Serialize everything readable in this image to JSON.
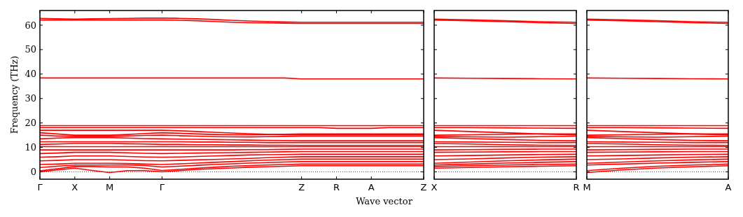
{
  "chart_data": [
    {
      "type": "line",
      "ylabel": "Frequency (THz)",
      "xlabel": "Wave vector",
      "categories": [
        "Γ",
        null,
        "X",
        null,
        "M",
        null,
        null,
        "Γ",
        null,
        null,
        null,
        null,
        null,
        null,
        null,
        "Z",
        null,
        "R",
        null,
        "A",
        null,
        null,
        "Z"
      ],
      "ylim": [
        -3,
        66
      ],
      "yticks": [
        0,
        10,
        20,
        30,
        40,
        50,
        60
      ],
      "grid": false,
      "line_style": "solid",
      "marker": "none",
      "ref_lines": [
        {
          "axis": "y",
          "value": 0,
          "color": "#0000ff",
          "line_style": "dotted"
        }
      ],
      "series": [
        {
          "color": "#ff0000",
          "values": [
            0,
            0.8,
            1.5,
            0.6,
            -0.3,
            0.5,
            0.5,
            0,
            0.5,
            1,
            1.3,
            1.6,
            1.9,
            2.1,
            2.3,
            2.5,
            2.5,
            2.5,
            2.5,
            2.5,
            2.5,
            2.5,
            2.5
          ]
        },
        {
          "color": "#ff0000",
          "values": [
            0.4,
            1.3,
            2.2,
            2.2,
            2,
            2,
            1.5,
            0.6,
            1,
            1.5,
            1.9,
            2.3,
            2.6,
            2.8,
            3,
            3.2,
            3.2,
            3.2,
            3.2,
            3.2,
            3.2,
            3.2,
            3.2
          ]
        },
        {
          "color": "#ff0000",
          "values": [
            1.8,
            2.3,
            2.8,
            2.8,
            2.8,
            2.8,
            2.6,
            2,
            2.3,
            2.7,
            3,
            3.3,
            3.6,
            3.8,
            4,
            4.2,
            4.2,
            4.2,
            4.2,
            4.2,
            4.2,
            4.2,
            4.2
          ]
        },
        {
          "color": "#ff0000",
          "values": [
            3,
            3.2,
            3.5,
            3.5,
            3.5,
            3.4,
            3.2,
            3,
            3.3,
            3.6,
            3.9,
            4.2,
            4.5,
            4.8,
            5,
            5.2,
            5.2,
            5.2,
            5.2,
            5.2,
            5.2,
            5.2,
            5.2
          ]
        },
        {
          "color": "#ff0000",
          "values": [
            4.5,
            4.7,
            5,
            5,
            5,
            4.8,
            4.6,
            4.5,
            4.7,
            4.9,
            5.1,
            5.3,
            5.5,
            5.8,
            6,
            6.2,
            6.2,
            6.2,
            6.2,
            6.2,
            6.2,
            6.2,
            6.2
          ]
        },
        {
          "color": "#ff0000",
          "values": [
            6,
            6.2,
            6.5,
            6.5,
            6.5,
            6.3,
            6.1,
            6,
            6.1,
            6.3,
            6.5,
            6.7,
            6.9,
            7,
            7.1,
            7.2,
            7.2,
            7.2,
            7.2,
            7.2,
            7.2,
            7.2,
            7.2
          ]
        },
        {
          "color": "#ff0000",
          "values": [
            7.5,
            7.7,
            8,
            8,
            8,
            7.8,
            7.6,
            7.5,
            7.6,
            7.7,
            7.8,
            7.9,
            8,
            8.1,
            8.2,
            8.3,
            8.3,
            8.3,
            8.3,
            8.3,
            8.3,
            8.3,
            8.3
          ]
        },
        {
          "color": "#ff0000",
          "values": [
            9,
            9,
            9,
            9,
            9,
            9,
            9,
            9,
            9,
            9,
            9,
            9,
            9.1,
            9.1,
            9.2,
            9.3,
            9.3,
            9.3,
            9.3,
            9.3,
            9.3,
            9.3,
            9.3
          ]
        },
        {
          "color": "#ff0000",
          "values": [
            10.3,
            10.3,
            10.3,
            10.3,
            10.3,
            10.3,
            10.3,
            10.3,
            10.3,
            10.3,
            10.3,
            10.3,
            10.3,
            10.3,
            10.3,
            10.3,
            10.3,
            10.3,
            10.3,
            10.3,
            10.3,
            10.3,
            10.3
          ]
        },
        {
          "color": "#ff0000",
          "values": [
            11.2,
            11.4,
            11.6,
            11.6,
            11.6,
            11.5,
            11.4,
            11.2,
            11.2,
            11.1,
            11.1,
            11,
            11,
            10.9,
            10.9,
            10.8,
            10.8,
            10.8,
            10.8,
            10.8,
            10.8,
            10.8,
            10.8
          ]
        },
        {
          "color": "#ff0000",
          "values": [
            12.3,
            12.3,
            12.3,
            12.3,
            12.3,
            12.3,
            12.3,
            12.3,
            12.3,
            12.2,
            12.2,
            12.1,
            12.1,
            12,
            12,
            12,
            12,
            12,
            12,
            12,
            12,
            12,
            12
          ]
        },
        {
          "color": "#ff0000",
          "values": [
            13.5,
            13.8,
            14,
            14,
            14,
            13.8,
            13.6,
            13.5,
            13.4,
            13.3,
            13.2,
            13.1,
            13,
            12.9,
            12.8,
            12.7,
            12.7,
            12.7,
            12.7,
            12.7,
            12.7,
            12.7,
            12.7
          ]
        },
        {
          "color": "#ff0000",
          "values": [
            15,
            14.7,
            14.5,
            14.5,
            14.5,
            14.7,
            14.9,
            15,
            14.8,
            14.6,
            14.4,
            14.3,
            14.3,
            14.4,
            14.5,
            14.6,
            14.6,
            14.6,
            14.6,
            14.6,
            14.6,
            14.6,
            14.6
          ]
        },
        {
          "color": "#ff0000",
          "values": [
            16,
            15.5,
            15,
            15,
            15,
            15.3,
            15.7,
            16,
            15.8,
            15.5,
            15.3,
            15.2,
            15.2,
            15.3,
            15.4,
            15.5,
            15.5,
            15.5,
            15.5,
            15.5,
            15.5,
            15.5,
            15.5
          ]
        },
        {
          "color": "#ff0000",
          "values": [
            17,
            17,
            17,
            17,
            17,
            17,
            17,
            17,
            16.8,
            16.5,
            16.2,
            15.9,
            15.6,
            15.4,
            15.2,
            15.1,
            15.1,
            15.1,
            15.1,
            15.1,
            15.1,
            15.1,
            15.1
          ]
        },
        {
          "color": "#ff0000",
          "values": [
            18.1,
            18.1,
            18.1,
            18.1,
            18.1,
            18.1,
            18.1,
            18.1,
            18.1,
            18.1,
            18.1,
            18.1,
            18.1,
            18.1,
            18.1,
            18.1,
            18.1,
            17.8,
            17.8,
            17.8,
            18.1,
            18.1,
            18.1
          ]
        },
        {
          "color": "#ff0000",
          "values": [
            18.9,
            18.9,
            18.9,
            18.9,
            18.9,
            18.9,
            18.9,
            18.9,
            18.9,
            18.9,
            18.9,
            18.9,
            18.9,
            18.9,
            18.9,
            18.9,
            18.9,
            18.9,
            18.9,
            18.9,
            18.9,
            18.9,
            18.9
          ]
        },
        {
          "color": "#ff0000",
          "values": [
            38.4,
            38.4,
            38.4,
            38.4,
            38.4,
            38.4,
            38.4,
            38.4,
            38.4,
            38.4,
            38.4,
            38.4,
            38.4,
            38.4,
            38.4,
            38,
            38,
            38,
            38,
            38,
            38,
            38,
            38
          ]
        },
        {
          "color": "#ff0000",
          "values": [
            62.8,
            62.6,
            62.5,
            62.6,
            62.7,
            62.8,
            62.9,
            62.9,
            62.8,
            62.6,
            62.3,
            62,
            61.7,
            61.5,
            61.3,
            61.2,
            61.2,
            61.2,
            61.2,
            61.2,
            61.2,
            61.2,
            61.2
          ]
        },
        {
          "color": "#ff0000",
          "values": [
            62.1,
            62.1,
            62.1,
            62.1,
            62.1,
            62.1,
            62.1,
            62.1,
            62,
            61.8,
            61.5,
            61.2,
            61,
            60.9,
            60.8,
            60.7,
            60.7,
            60.7,
            60.7,
            60.7,
            60.7,
            60.7,
            60.7
          ]
        }
      ]
    },
    {
      "type": "line",
      "categories": [
        "X",
        null,
        null,
        null,
        "R"
      ],
      "ylim": [
        -3,
        66
      ],
      "yticks": [
        0,
        10,
        20,
        30,
        40,
        50,
        60
      ],
      "tick_labels": "x",
      "grid": false,
      "line_style": "solid",
      "marker": "none",
      "ref_lines": [
        {
          "axis": "y",
          "value": 0,
          "color": "#0000ff",
          "line_style": "dotted"
        }
      ],
      "series": [
        {
          "color": "#ff0000",
          "values": [
            1.5,
            1.8,
            2.1,
            2.3,
            2.5
          ]
        },
        {
          "color": "#ff0000",
          "values": [
            2.2,
            2.5,
            2.8,
            3,
            3.2
          ]
        },
        {
          "color": "#ff0000",
          "values": [
            2.8,
            3.2,
            3.6,
            3.9,
            4.2
          ]
        },
        {
          "color": "#ff0000",
          "values": [
            3.5,
            4,
            4.5,
            4.9,
            5.2
          ]
        },
        {
          "color": "#ff0000",
          "values": [
            5,
            5.3,
            5.7,
            6,
            6.2
          ]
        },
        {
          "color": "#ff0000",
          "values": [
            6.5,
            6.7,
            6.9,
            7.1,
            7.2
          ]
        },
        {
          "color": "#ff0000",
          "values": [
            8,
            8.1,
            8.2,
            8.3,
            8.3
          ]
        },
        {
          "color": "#ff0000",
          "values": [
            9,
            9.1,
            9.2,
            9.3,
            9.3
          ]
        },
        {
          "color": "#ff0000",
          "values": [
            10.3,
            10.3,
            10.3,
            10.3,
            10.3
          ]
        },
        {
          "color": "#ff0000",
          "values": [
            11.6,
            11.4,
            11.1,
            10.9,
            10.8
          ]
        },
        {
          "color": "#ff0000",
          "values": [
            12.3,
            12.2,
            12.1,
            12,
            12
          ]
        },
        {
          "color": "#ff0000",
          "values": [
            14,
            13.6,
            13.2,
            12.9,
            12.7
          ]
        },
        {
          "color": "#ff0000",
          "values": [
            14.5,
            14.3,
            14.2,
            14.4,
            14.6
          ]
        },
        {
          "color": "#ff0000",
          "values": [
            15,
            15.2,
            15.4,
            15.5,
            15.5
          ]
        },
        {
          "color": "#ff0000",
          "values": [
            17,
            16.5,
            16,
            15.5,
            15.1
          ]
        },
        {
          "color": "#ff0000",
          "values": [
            18.1,
            18.1,
            18,
            17.9,
            17.8
          ]
        },
        {
          "color": "#ff0000",
          "values": [
            18.9,
            18.9,
            18.9,
            18.9,
            18.9
          ]
        },
        {
          "color": "#ff0000",
          "values": [
            38.4,
            38.3,
            38.2,
            38.1,
            38
          ]
        },
        {
          "color": "#ff0000",
          "values": [
            62.5,
            62.2,
            61.8,
            61.4,
            61.2
          ]
        },
        {
          "color": "#ff0000",
          "values": [
            62.1,
            61.8,
            61.4,
            61,
            60.7
          ]
        }
      ]
    },
    {
      "type": "line",
      "categories": [
        "M",
        null,
        null,
        null,
        "A"
      ],
      "ylim": [
        -3,
        66
      ],
      "yticks": [
        0,
        10,
        20,
        30,
        40,
        50,
        60
      ],
      "tick_labels": "x",
      "grid": false,
      "line_style": "solid",
      "marker": "none",
      "ref_lines": [
        {
          "axis": "y",
          "value": 0,
          "color": "#0000ff",
          "line_style": "dotted"
        }
      ],
      "series": [
        {
          "color": "#ff0000",
          "values": [
            -0.3,
            0.8,
            1.6,
            2.1,
            2.5
          ]
        },
        {
          "color": "#ff0000",
          "values": [
            0.5,
            1.5,
            2.3,
            2.8,
            3.2
          ]
        },
        {
          "color": "#ff0000",
          "values": [
            2.8,
            3.2,
            3.6,
            3.9,
            4.2
          ]
        },
        {
          "color": "#ff0000",
          "values": [
            3.5,
            4,
            4.5,
            4.9,
            5.2
          ]
        },
        {
          "color": "#ff0000",
          "values": [
            5,
            5.3,
            5.7,
            6,
            6.2
          ]
        },
        {
          "color": "#ff0000",
          "values": [
            6.5,
            6.7,
            6.9,
            7.1,
            7.2
          ]
        },
        {
          "color": "#ff0000",
          "values": [
            8,
            8.1,
            8.2,
            8.3,
            8.3
          ]
        },
        {
          "color": "#ff0000",
          "values": [
            9,
            9.1,
            9.2,
            9.3,
            9.3
          ]
        },
        {
          "color": "#ff0000",
          "values": [
            10.3,
            10.3,
            10.3,
            10.3,
            10.3
          ]
        },
        {
          "color": "#ff0000",
          "values": [
            11.6,
            11.4,
            11.1,
            10.9,
            10.8
          ]
        },
        {
          "color": "#ff0000",
          "values": [
            12.3,
            12.2,
            12.1,
            12,
            12
          ]
        },
        {
          "color": "#ff0000",
          "values": [
            14,
            13.6,
            13.2,
            12.9,
            12.7
          ]
        },
        {
          "color": "#ff0000",
          "values": [
            14.5,
            14.3,
            14.2,
            14.4,
            14.6
          ]
        },
        {
          "color": "#ff0000",
          "values": [
            15,
            15.2,
            15.4,
            15.5,
            15.5
          ]
        },
        {
          "color": "#ff0000",
          "values": [
            17,
            16.5,
            16,
            15.5,
            15.1
          ]
        },
        {
          "color": "#ff0000",
          "values": [
            18.1,
            18.1,
            18,
            17.9,
            17.8
          ]
        },
        {
          "color": "#ff0000",
          "values": [
            18.9,
            18.9,
            18.9,
            18.9,
            18.9
          ]
        },
        {
          "color": "#ff0000",
          "values": [
            38.4,
            38.3,
            38.2,
            38.1,
            38
          ]
        },
        {
          "color": "#ff0000",
          "values": [
            62.5,
            62.2,
            61.8,
            61.4,
            61.2
          ]
        },
        {
          "color": "#ff0000",
          "values": [
            62.1,
            61.8,
            61.4,
            61,
            60.7
          ]
        }
      ]
    }
  ]
}
